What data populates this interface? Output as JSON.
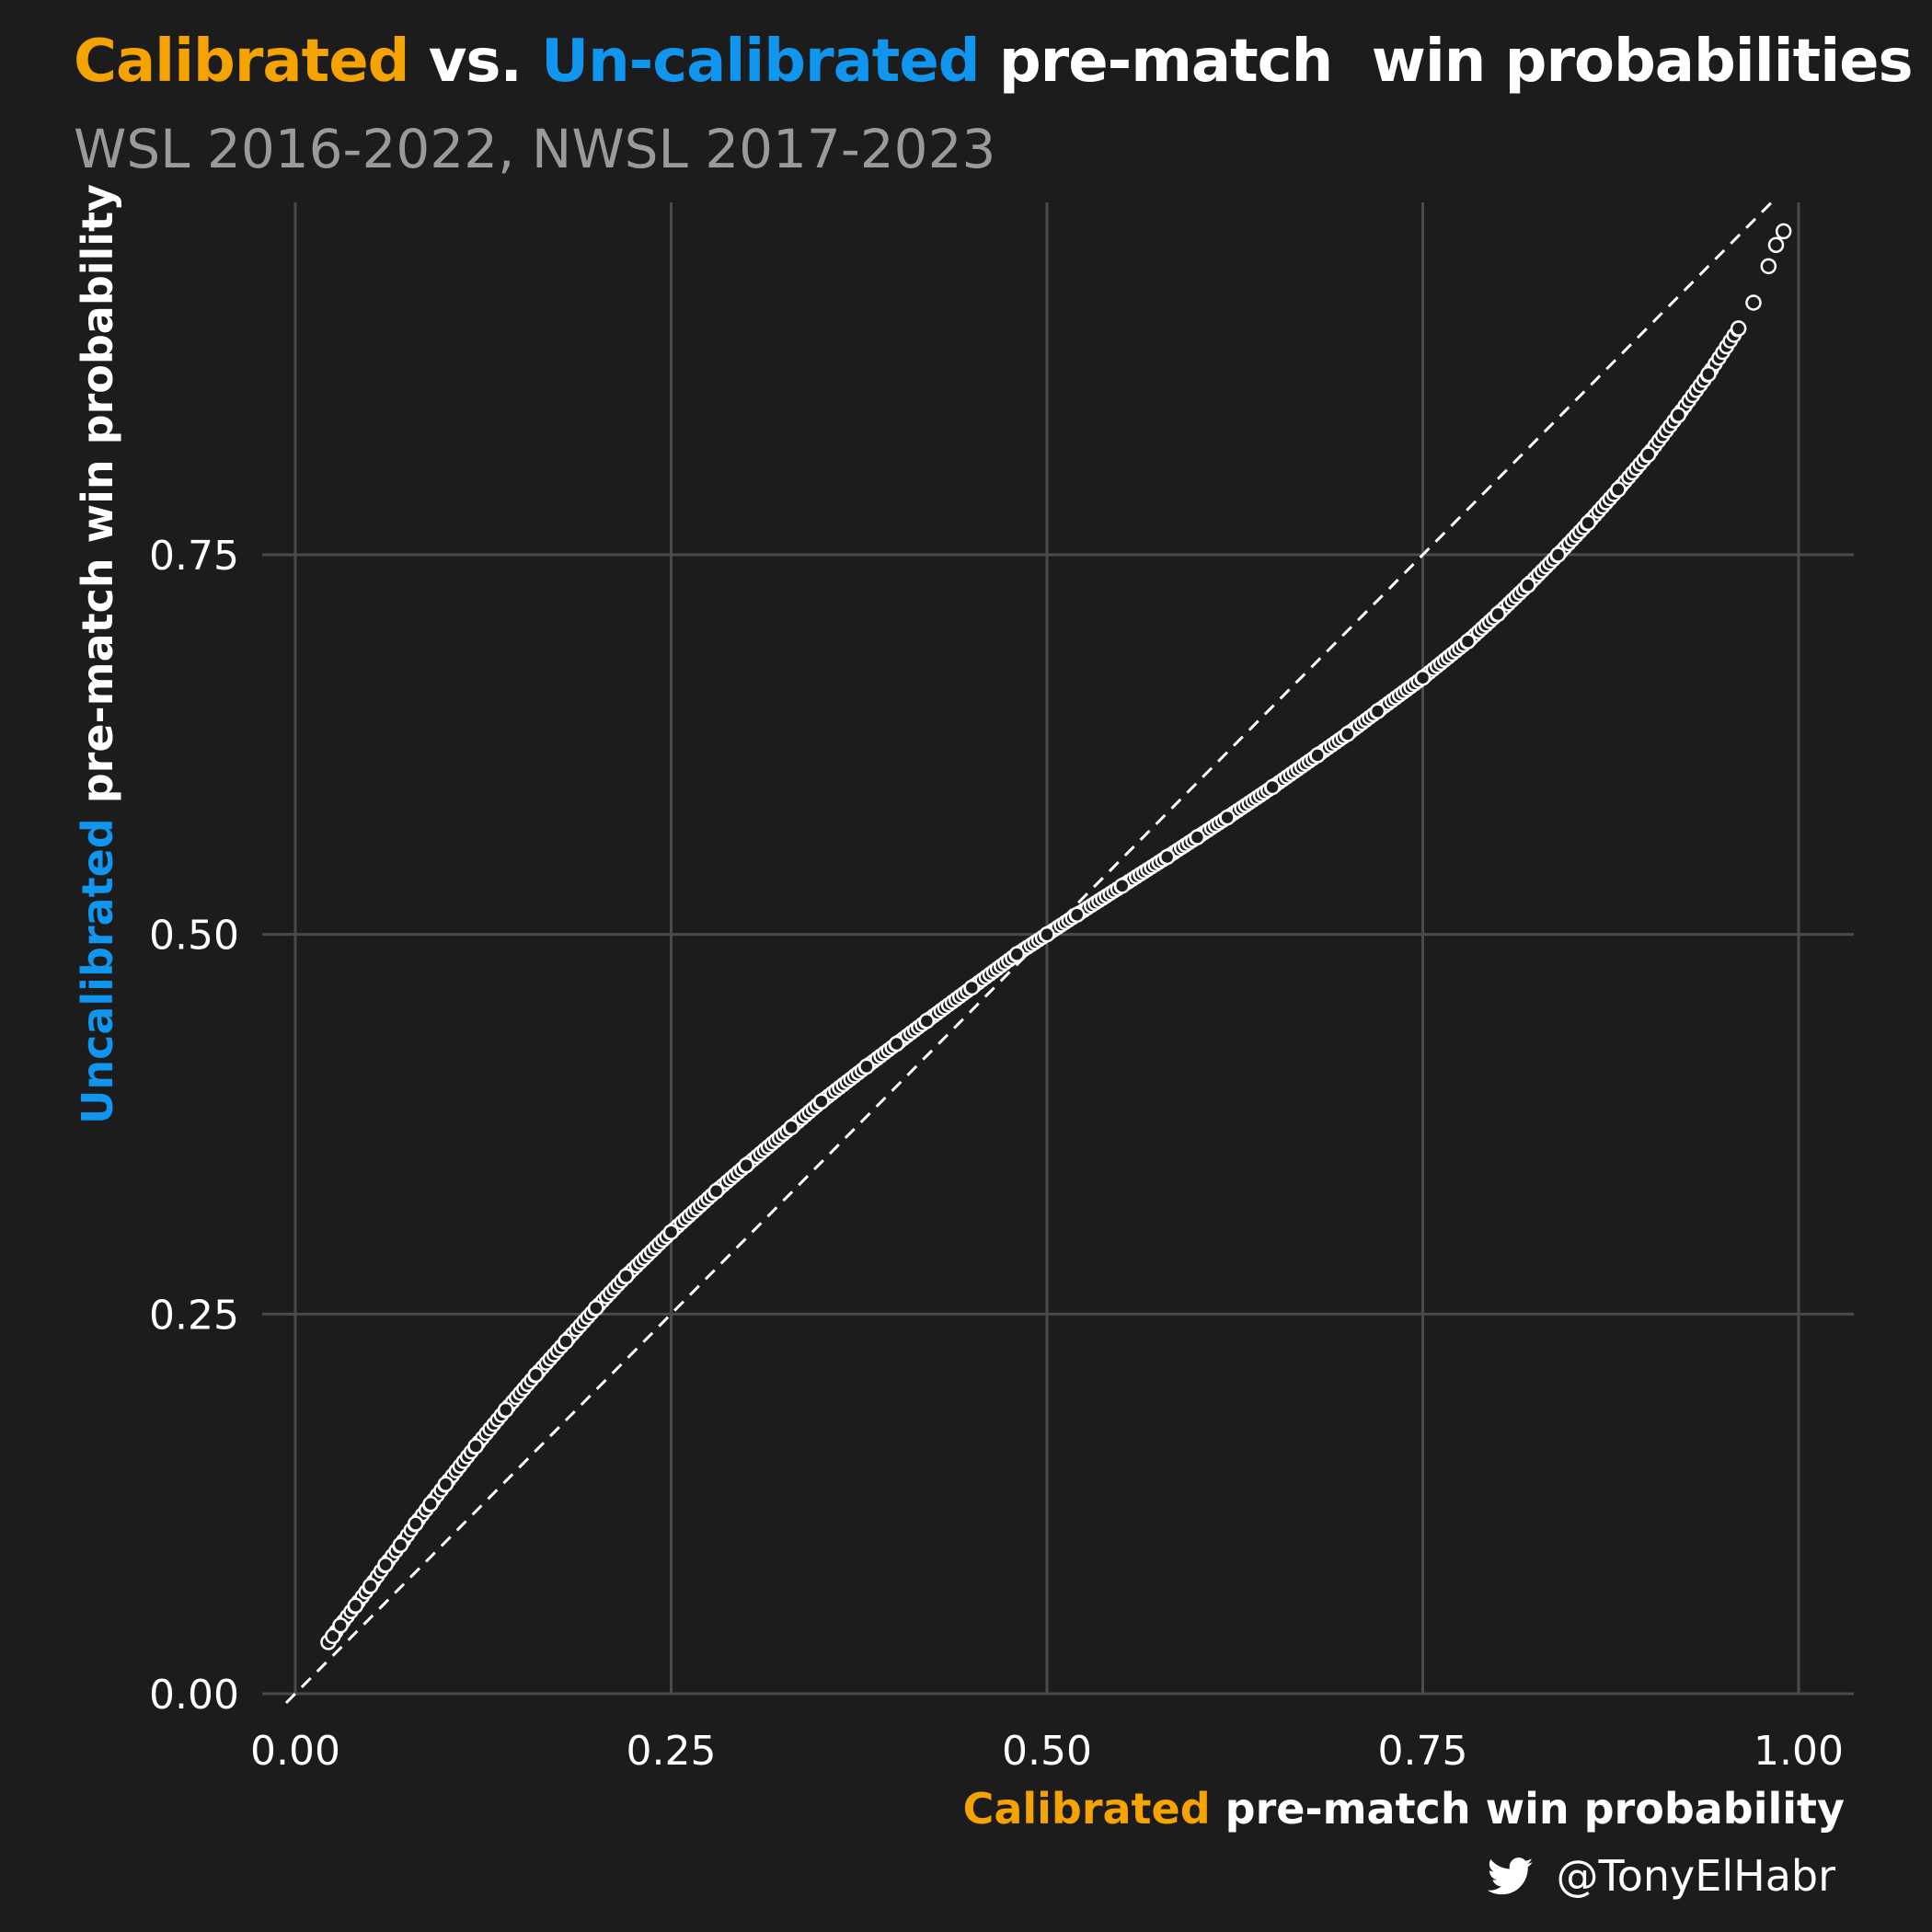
{
  "title": {
    "part1": "Calibrated",
    "part2": " vs. ",
    "part3": "Un-calibrated",
    "part4": " pre-match  win probabilities"
  },
  "subtitle": "WSL 2016-2022, NWSL 2017-2023",
  "caption": {
    "handle": "@TonyElHabr",
    "icon": "twitter-bird-icon"
  },
  "colors": {
    "background": "#1c1c1c",
    "calibrated": "#f5a300",
    "uncalibrated": "#1196f0",
    "text": "#ffffff",
    "subtitle": "#9a9a9a",
    "grid": "#4a4a4a"
  },
  "chart_data": {
    "type": "scatter",
    "xlabel_highlight": "Calibrated",
    "xlabel_rest": " pre-match win probability",
    "ylabel_highlight": "Uncalibrated",
    "ylabel_rest": " pre-match win probability",
    "xlim": [
      0,
      1.0
    ],
    "ylim": [
      0,
      0.95
    ],
    "x_ticks": [
      0.0,
      0.25,
      0.5,
      0.75,
      1.0
    ],
    "x_tick_labels": [
      "0.00",
      "0.25",
      "0.50",
      "0.75",
      "1.00"
    ],
    "y_ticks": [
      0.0,
      0.25,
      0.5,
      0.75
    ],
    "y_tick_labels": [
      "0.00",
      "0.25",
      "0.50",
      "0.75"
    ],
    "grid": true,
    "reference_line": {
      "style": "dashed",
      "x": [
        0,
        1
      ],
      "y": [
        0,
        1
      ]
    },
    "series": [
      {
        "x": [
          0.022,
          0.025,
          0.03,
          0.04,
          0.05,
          0.06,
          0.07,
          0.08,
          0.09,
          0.1,
          0.12,
          0.14,
          0.16,
          0.18,
          0.2,
          0.22,
          0.25,
          0.28,
          0.3,
          0.33,
          0.35,
          0.38,
          0.4,
          0.42,
          0.45,
          0.48,
          0.5,
          0.52,
          0.55,
          0.58,
          0.6,
          0.62,
          0.65,
          0.68,
          0.7,
          0.72,
          0.75,
          0.78,
          0.8,
          0.82,
          0.84,
          0.86,
          0.88,
          0.9,
          0.92,
          0.94,
          0.96,
          0.97,
          0.98,
          0.985,
          0.99
        ],
        "y": [
          0.034,
          0.038,
          0.045,
          0.058,
          0.071,
          0.085,
          0.098,
          0.112,
          0.125,
          0.138,
          0.163,
          0.187,
          0.21,
          0.232,
          0.254,
          0.275,
          0.304,
          0.331,
          0.348,
          0.373,
          0.39,
          0.413,
          0.428,
          0.443,
          0.465,
          0.487,
          0.5,
          0.513,
          0.532,
          0.551,
          0.564,
          0.577,
          0.597,
          0.618,
          0.632,
          0.647,
          0.669,
          0.693,
          0.711,
          0.73,
          0.75,
          0.771,
          0.793,
          0.816,
          0.842,
          0.869,
          0.899,
          0.916,
          0.94,
          0.954,
          0.963
        ]
      }
    ]
  }
}
